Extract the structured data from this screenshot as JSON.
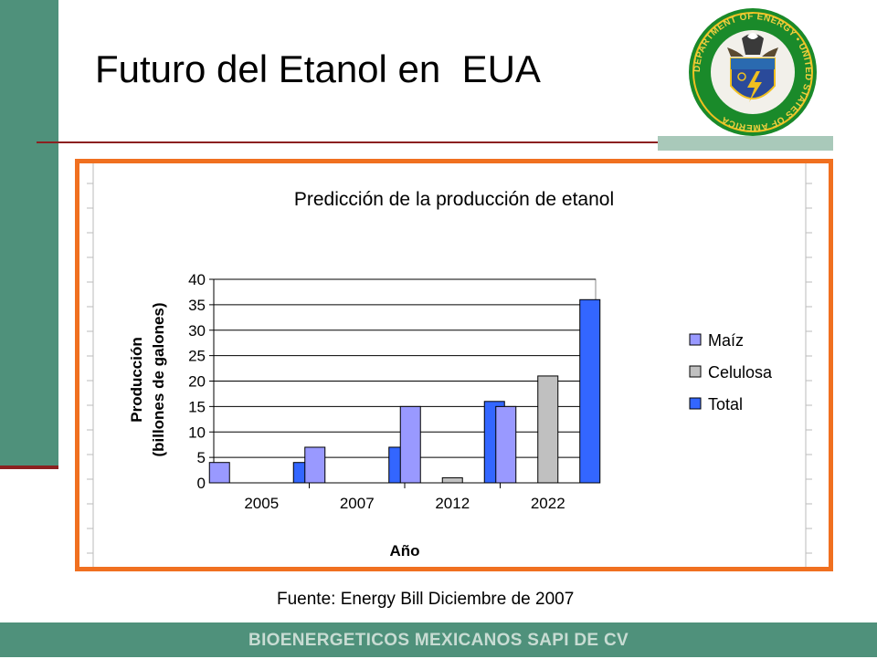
{
  "slide": {
    "title": "Futuro del Etanol en  EUA",
    "source": "Fuente: Energy Bill Diciembre de 2007",
    "footer": "BIOENERGETICOS MEXICANOS SAPI DE CV",
    "seal_text": "DEPARTMENT OF ENERGY • UNITED STATES OF AMERICA",
    "seal_icon": "department-of-energy-seal",
    "colors": {
      "accent_green": "#4f917b",
      "rule_red": "#8b2020",
      "frame_orange": "#f07020"
    }
  },
  "chart_data": {
    "type": "bar",
    "title": "Predicción de la producción de etanol",
    "xlabel": "Año",
    "ylabel_lines": [
      "Producción",
      "(billones de galones)"
    ],
    "categories": [
      "2005",
      "2007",
      "2012",
      "2022"
    ],
    "series": [
      {
        "name": "Maíz",
        "color": "#9999ff",
        "values": [
          4,
          7,
          15,
          15
        ]
      },
      {
        "name": "Celulosa",
        "color": "#c0c0c0",
        "values": [
          0,
          0,
          1,
          21
        ]
      },
      {
        "name": "Total",
        "color": "#3366ff",
        "values": [
          4,
          7,
          16,
          36
        ]
      }
    ],
    "ylim": [
      0,
      40
    ],
    "yticks": [
      0,
      5,
      10,
      15,
      20,
      25,
      30,
      35,
      40
    ],
    "grid": true,
    "legend": "right"
  }
}
